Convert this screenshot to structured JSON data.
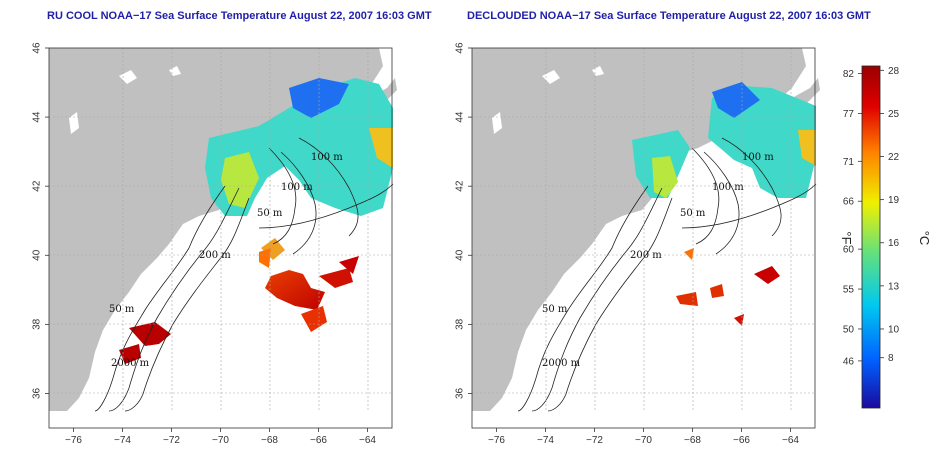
{
  "panels": [
    {
      "title": "RU COOL NOAA−17 Sea Surface Temperature August 22, 2007 16:03 GMT",
      "contour_labels": [
        "100 m",
        "100 m",
        "50 m",
        "200 m",
        "50 m",
        "2000 m"
      ]
    },
    {
      "title": "DECLOUDED NOAA−17 Sea Surface Temperature August 22, 2007 16:03 GMT",
      "contour_labels": [
        "100 m",
        "100 m",
        "50 m",
        "200 m",
        "50 m",
        "2000 m"
      ]
    }
  ],
  "axes": {
    "x_ticks": [
      "−76",
      "−74",
      "−72",
      "−70",
      "−68",
      "−66",
      "−64"
    ],
    "x_values": [
      -76,
      -74,
      -72,
      -70,
      -68,
      -66,
      -64
    ],
    "y_ticks": [
      "36",
      "38",
      "40",
      "42",
      "44",
      "46"
    ],
    "y_values": [
      36,
      38,
      40,
      42,
      44,
      46
    ],
    "lon_range": [
      -77,
      -63
    ],
    "lat_range": [
      35,
      46
    ]
  },
  "colorbar": {
    "f_unit": "°F",
    "c_unit": "°C",
    "f_ticks": [
      "82",
      "77",
      "71",
      "66",
      "60",
      "55",
      "50",
      "46"
    ],
    "f_values": [
      82,
      77,
      71,
      66,
      60,
      55,
      50,
      46
    ],
    "c_ticks": [
      "28",
      "25",
      "22",
      "19",
      "16",
      "13",
      "10",
      "8"
    ],
    "c_values": [
      28,
      25,
      22,
      19,
      16,
      13,
      10,
      8
    ],
    "c_range": [
      4.5,
      28.3
    ],
    "colors": [
      "#1a0a9e",
      "#0060ff",
      "#00c8f0",
      "#60e080",
      "#f0f000",
      "#ff8000",
      "#e00000",
      "#9a0000"
    ]
  },
  "legend_colors": {
    "land": "#c0c0c0",
    "grid": "#a8a8a8",
    "contour": "#222222"
  }
}
